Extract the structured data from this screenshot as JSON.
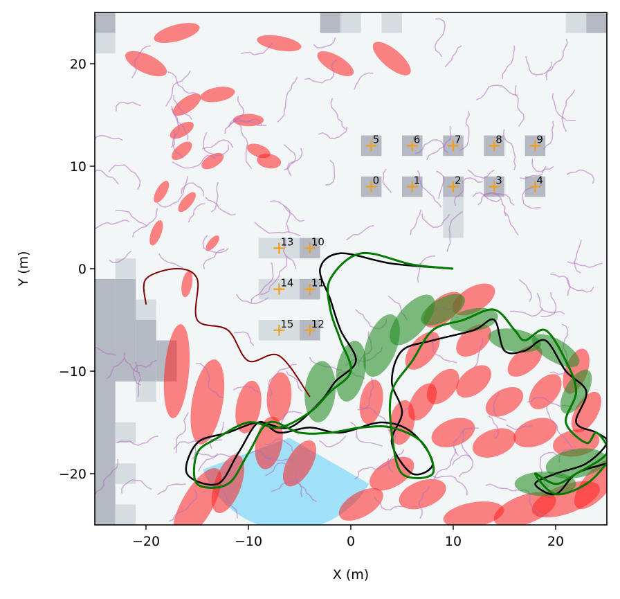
{
  "chart_data": {
    "type": "scatter",
    "title": "",
    "xlabel": "X (m)",
    "ylabel": "Y (m)",
    "xlim": [
      -25,
      25
    ],
    "ylim": [
      -25,
      25
    ],
    "xticks": [
      -20,
      -10,
      0,
      10,
      20
    ],
    "yticks": [
      -20,
      -10,
      0,
      10,
      20
    ],
    "xtick_labels": [
      "−20",
      "−10",
      "0",
      "10",
      "20"
    ],
    "ytick_labels": [
      "−20",
      "−10",
      "0",
      "10",
      "20"
    ],
    "grid": false,
    "legend": "none",
    "colors": {
      "ground_truth": "#000000",
      "estimate": "#007a00",
      "estimate_cov": "#2a8f2a",
      "odometry": "#800000",
      "particles": "#b070c0",
      "particle_cov": "#ff2020",
      "landmark": "#f0a020",
      "fov": "#7dd8f8",
      "occupancy_bg": "#f3f6f7",
      "occupancy_occ": "#b4b9c4"
    },
    "landmarks": [
      {
        "id": "0",
        "x": 2,
        "y": 8
      },
      {
        "id": "1",
        "x": 6,
        "y": 8
      },
      {
        "id": "2",
        "x": 10,
        "y": 8
      },
      {
        "id": "3",
        "x": 14,
        "y": 8
      },
      {
        "id": "4",
        "x": 18,
        "y": 8
      },
      {
        "id": "5",
        "x": 2,
        "y": 12
      },
      {
        "id": "6",
        "x": 6,
        "y": 12
      },
      {
        "id": "7",
        "x": 10,
        "y": 12
      },
      {
        "id": "8",
        "x": 14,
        "y": 12
      },
      {
        "id": "9",
        "x": 18,
        "y": 12
      },
      {
        "id": "10",
        "x": -4,
        "y": 2
      },
      {
        "id": "11",
        "x": -4,
        "y": -2
      },
      {
        "id": "12",
        "x": -4,
        "y": -6
      },
      {
        "id": "13",
        "x": -7,
        "y": 2
      },
      {
        "id": "14",
        "x": -7,
        "y": -2
      },
      {
        "id": "15",
        "x": -7,
        "y": -6
      }
    ],
    "ground_truth_path": [
      [
        10,
        0
      ],
      [
        4,
        0.5
      ],
      [
        -1,
        1.5
      ],
      [
        -3,
        0
      ],
      [
        -2,
        -3
      ],
      [
        -1,
        -6
      ],
      [
        0.5,
        -9
      ],
      [
        -1.5,
        -11
      ],
      [
        -3,
        -13
      ],
      [
        -6,
        -15.5
      ],
      [
        -9,
        -15
      ],
      [
        -12,
        -16
      ],
      [
        -15,
        -17
      ],
      [
        -16,
        -20
      ],
      [
        -13,
        -21
      ],
      [
        -11,
        -18
      ],
      [
        -9,
        -15
      ],
      [
        -7,
        -16
      ],
      [
        -4,
        -15.5
      ],
      [
        -1,
        -16
      ],
      [
        3,
        -15
      ],
      [
        6,
        -16
      ],
      [
        8,
        -19
      ],
      [
        6,
        -20
      ],
      [
        4,
        -17
      ],
      [
        5,
        -14
      ],
      [
        4,
        -11
      ],
      [
        5,
        -8
      ],
      [
        8,
        -7
      ],
      [
        12,
        -6
      ],
      [
        14,
        -5
      ],
      [
        15,
        -8
      ],
      [
        17,
        -8
      ],
      [
        19,
        -7
      ],
      [
        21,
        -10
      ],
      [
        23,
        -12
      ],
      [
        22,
        -15
      ],
      [
        24,
        -16
      ],
      [
        25,
        -17
      ],
      [
        23,
        -19
      ],
      [
        20,
        -20
      ],
      [
        18,
        -21
      ],
      [
        20,
        -22
      ],
      [
        22,
        -20
      ],
      [
        25,
        -19
      ]
    ],
    "estimate_path": [
      [
        10,
        0
      ],
      [
        6,
        0.4
      ],
      [
        1,
        1.5
      ],
      [
        -2,
        -1
      ],
      [
        -2,
        -4
      ],
      [
        -1,
        -7
      ],
      [
        0,
        -10
      ],
      [
        -2,
        -12
      ],
      [
        -4,
        -14
      ],
      [
        -7,
        -15.5
      ],
      [
        -10,
        -15
      ],
      [
        -13,
        -16.5
      ],
      [
        -15,
        -18
      ],
      [
        -15,
        -21
      ],
      [
        -12,
        -21
      ],
      [
        -10,
        -18
      ],
      [
        -8,
        -15
      ],
      [
        -5,
        -16
      ],
      [
        -2,
        -16
      ],
      [
        1,
        -15.5
      ],
      [
        4,
        -15.5
      ],
      [
        7,
        -17
      ],
      [
        8,
        -20
      ],
      [
        5,
        -20
      ],
      [
        4,
        -16
      ],
      [
        4,
        -12
      ],
      [
        6,
        -9
      ],
      [
        8,
        -6
      ],
      [
        11,
        -5
      ],
      [
        14,
        -4
      ],
      [
        16,
        -6
      ],
      [
        17,
        -7
      ],
      [
        19,
        -6
      ],
      [
        21,
        -9
      ],
      [
        22,
        -12
      ],
      [
        21,
        -15
      ],
      [
        23,
        -17
      ],
      [
        24,
        -16
      ],
      [
        25,
        -18
      ],
      [
        22,
        -20
      ],
      [
        20,
        -21
      ],
      [
        18,
        -20
      ],
      [
        20,
        -22
      ],
      [
        23,
        -21
      ],
      [
        25,
        -19
      ]
    ],
    "odometry_path": [
      [
        -20,
        -3.5
      ],
      [
        -20,
        -1
      ],
      [
        -17,
        0
      ],
      [
        -15,
        -1
      ],
      [
        -15,
        -5
      ],
      [
        -12,
        -6
      ],
      [
        -10,
        -9
      ],
      [
        -7,
        -8.5
      ],
      [
        -4,
        -12.5
      ]
    ],
    "cov_red": [
      {
        "x": -20,
        "y": 20,
        "rx": 2.2,
        "ry": 0.9,
        "rot": -25
      },
      {
        "x": -17,
        "y": 23,
        "rx": 2.3,
        "ry": 0.8,
        "rot": 15
      },
      {
        "x": -7,
        "y": 22,
        "rx": 2.2,
        "ry": 0.7,
        "rot": -10
      },
      {
        "x": 4,
        "y": 20.5,
        "rx": 2.3,
        "ry": 0.9,
        "rot": -40
      },
      {
        "x": -1.5,
        "y": 20,
        "rx": 2,
        "ry": 0.8,
        "rot": -30
      },
      {
        "x": -16,
        "y": 16,
        "rx": 1.6,
        "ry": 0.7,
        "rot": 35
      },
      {
        "x": -13,
        "y": 17,
        "rx": 1.7,
        "ry": 0.7,
        "rot": 10
      },
      {
        "x": -10,
        "y": 14.5,
        "rx": 1.5,
        "ry": 0.6,
        "rot": 0
      },
      {
        "x": -16.5,
        "y": 13.5,
        "rx": 1.3,
        "ry": 0.6,
        "rot": 30
      },
      {
        "x": -16.5,
        "y": 11.5,
        "rx": 1.2,
        "ry": 0.6,
        "rot": 40
      },
      {
        "x": -9,
        "y": 11.5,
        "rx": 1.2,
        "ry": 0.6,
        "rot": -20
      },
      {
        "x": -13.5,
        "y": 10.5,
        "rx": 1.2,
        "ry": 0.6,
        "rot": 30
      },
      {
        "x": -8,
        "y": 10.5,
        "rx": 1.2,
        "ry": 0.7,
        "rot": -10
      },
      {
        "x": -18.5,
        "y": 7.5,
        "rx": 1.2,
        "ry": 0.5,
        "rot": 60
      },
      {
        "x": -16,
        "y": 6.5,
        "rx": 1.2,
        "ry": 0.5,
        "rot": 50
      },
      {
        "x": -19,
        "y": 3.5,
        "rx": 1.3,
        "ry": 0.5,
        "rot": 70
      },
      {
        "x": -13.5,
        "y": 2.5,
        "rx": 0.9,
        "ry": 0.4,
        "rot": 50
      },
      {
        "x": -16,
        "y": -1.5,
        "rx": 1.3,
        "ry": 0.5,
        "rot": 80
      },
      {
        "x": -17,
        "y": -10,
        "rx": 4.6,
        "ry": 1.2,
        "rot": 85
      },
      {
        "x": -14,
        "y": -13,
        "rx": 4.2,
        "ry": 1.5,
        "rot": 80
      },
      {
        "x": -10,
        "y": -13.5,
        "rx": 2.6,
        "ry": 1.2,
        "rot": 80
      },
      {
        "x": -7,
        "y": -12.5,
        "rx": 2.4,
        "ry": 1.2,
        "rot": 85
      },
      {
        "x": -8,
        "y": -17,
        "rx": 2.6,
        "ry": 1.3,
        "rot": 80
      },
      {
        "x": -5,
        "y": -19,
        "rx": 2.5,
        "ry": 1.2,
        "rot": 60
      },
      {
        "x": -15,
        "y": -23,
        "rx": 4,
        "ry": 1.5,
        "rot": 60
      },
      {
        "x": -12,
        "y": -21,
        "rx": 3,
        "ry": 1.3,
        "rot": 70
      },
      {
        "x": 2,
        "y": -13,
        "rx": 2.2,
        "ry": 1.1,
        "rot": 80
      },
      {
        "x": 5,
        "y": -15,
        "rx": 2.2,
        "ry": 1.2,
        "rot": 80
      },
      {
        "x": 7,
        "y": -13,
        "rx": 2,
        "ry": 1.1,
        "rot": 60
      },
      {
        "x": 9,
        "y": -11.5,
        "rx": 2,
        "ry": 1.2,
        "rot": 50
      },
      {
        "x": 7,
        "y": -8,
        "rx": 2.2,
        "ry": 1.2,
        "rot": 50
      },
      {
        "x": 9,
        "y": -4,
        "rx": 2.3,
        "ry": 1.2,
        "rot": 40
      },
      {
        "x": 12,
        "y": -3,
        "rx": 2.3,
        "ry": 1.2,
        "rot": 30
      },
      {
        "x": 12,
        "y": -7,
        "rx": 2,
        "ry": 1.2,
        "rot": 40
      },
      {
        "x": 12,
        "y": -11,
        "rx": 2,
        "ry": 1.2,
        "rot": 40
      },
      {
        "x": 15,
        "y": -13,
        "rx": 2,
        "ry": 1.2,
        "rot": 30
      },
      {
        "x": 17,
        "y": -9,
        "rx": 2,
        "ry": 1.1,
        "rot": 40
      },
      {
        "x": 19,
        "y": -12,
        "rx": 2,
        "ry": 1.2,
        "rot": 50
      },
      {
        "x": 22,
        "y": -10,
        "rx": 2.3,
        "ry": 1.1,
        "rot": 70
      },
      {
        "x": 23,
        "y": -14,
        "rx": 2.2,
        "ry": 1.1,
        "rot": 60
      },
      {
        "x": 10,
        "y": -16,
        "rx": 2.2,
        "ry": 1.3,
        "rot": 20
      },
      {
        "x": 14,
        "y": -17,
        "rx": 2.2,
        "ry": 1.3,
        "rot": 20
      },
      {
        "x": 18,
        "y": -16,
        "rx": 2.2,
        "ry": 1.3,
        "rot": 20
      },
      {
        "x": 22,
        "y": -17,
        "rx": 2.3,
        "ry": 1.3,
        "rot": 10
      },
      {
        "x": 4,
        "y": -20,
        "rx": 2.4,
        "ry": 1.3,
        "rot": 30
      },
      {
        "x": 7,
        "y": -22,
        "rx": 2.4,
        "ry": 1.3,
        "rot": 20
      },
      {
        "x": 1,
        "y": -23,
        "rx": 2.4,
        "ry": 1.2,
        "rot": 30
      },
      {
        "x": 12,
        "y": -24,
        "rx": 3,
        "ry": 1.2,
        "rot": 10
      },
      {
        "x": 17,
        "y": -23.5,
        "rx": 3.2,
        "ry": 1.4,
        "rot": 20
      },
      {
        "x": 21,
        "y": -22.5,
        "rx": 3.5,
        "ry": 1.4,
        "rot": 20
      },
      {
        "x": 24,
        "y": -21,
        "rx": 3,
        "ry": 1.3,
        "rot": 50
      }
    ],
    "cov_green": [
      {
        "x": -3,
        "y": -12,
        "rx": 3,
        "ry": 1.5,
        "rot": 85
      },
      {
        "x": 0,
        "y": -10,
        "rx": 3,
        "ry": 1.4,
        "rot": 80
      },
      {
        "x": 3,
        "y": -7.5,
        "rx": 3.2,
        "ry": 1.5,
        "rot": 70
      },
      {
        "x": 6,
        "y": -5,
        "rx": 3,
        "ry": 1.4,
        "rot": 50
      },
      {
        "x": 9,
        "y": -4,
        "rx": 2.4,
        "ry": 1.1,
        "rot": 30
      },
      {
        "x": 12,
        "y": -5,
        "rx": 2.4,
        "ry": 1.1,
        "rot": 10
      },
      {
        "x": 16,
        "y": -7,
        "rx": 2.6,
        "ry": 1.1,
        "rot": -10
      },
      {
        "x": 20,
        "y": -8,
        "rx": 2.6,
        "ry": 1.1,
        "rot": -30
      },
      {
        "x": 22,
        "y": -12,
        "rx": 2.4,
        "ry": 1.1,
        "rot": 60
      },
      {
        "x": 22,
        "y": -19,
        "rx": 3,
        "ry": 1.4,
        "rot": 10
      },
      {
        "x": 19,
        "y": -21,
        "rx": 3,
        "ry": 1.2,
        "rot": 0
      }
    ],
    "occupancy_cells": [
      {
        "x": -25,
        "y": 23,
        "w": 2,
        "h": 2
      },
      {
        "x": -25,
        "y": 21,
        "w": 2,
        "h": 2,
        "light": true
      },
      {
        "x": -3,
        "y": 23,
        "w": 2,
        "h": 2
      },
      {
        "x": -1,
        "y": 23,
        "w": 2,
        "h": 2,
        "light": true
      },
      {
        "x": 3,
        "y": 23,
        "w": 2,
        "h": 2,
        "light": true
      },
      {
        "x": 21,
        "y": 23,
        "w": 2,
        "h": 2,
        "light": true
      },
      {
        "x": 23,
        "y": 23,
        "w": 2,
        "h": 2
      },
      {
        "x": 1,
        "y": 11,
        "w": 2,
        "h": 2
      },
      {
        "x": 5,
        "y": 11,
        "w": 2,
        "h": 2
      },
      {
        "x": 9,
        "y": 11,
        "w": 2,
        "h": 2
      },
      {
        "x": 13,
        "y": 11,
        "w": 2,
        "h": 2
      },
      {
        "x": 17,
        "y": 11,
        "w": 2,
        "h": 2
      },
      {
        "x": 1,
        "y": 7,
        "w": 2,
        "h": 2
      },
      {
        "x": 5,
        "y": 7,
        "w": 2,
        "h": 2
      },
      {
        "x": 9,
        "y": 7,
        "w": 2,
        "h": 2
      },
      {
        "x": 13,
        "y": 7,
        "w": 2,
        "h": 2
      },
      {
        "x": 17,
        "y": 7,
        "w": 2,
        "h": 2
      },
      {
        "x": 9,
        "y": 5,
        "w": 2,
        "h": 2,
        "light": true
      },
      {
        "x": 9,
        "y": 3,
        "w": 2,
        "h": 2,
        "light": true
      },
      {
        "x": -9,
        "y": 1,
        "w": 4,
        "h": 2,
        "light": true
      },
      {
        "x": -5,
        "y": 1,
        "w": 2,
        "h": 2
      },
      {
        "x": -9,
        "y": -3,
        "w": 4,
        "h": 2,
        "light": true
      },
      {
        "x": -5,
        "y": -3,
        "w": 2,
        "h": 2
      },
      {
        "x": -9,
        "y": -7,
        "w": 4,
        "h": 2,
        "light": true
      },
      {
        "x": -5,
        "y": -7,
        "w": 2,
        "h": 2
      },
      {
        "x": -25,
        "y": -25,
        "w": 2,
        "h": 24
      },
      {
        "x": -23,
        "y": -11,
        "w": 2,
        "h": 10
      },
      {
        "x": -21,
        "y": -11,
        "w": 2,
        "h": 6
      },
      {
        "x": -19,
        "y": -11,
        "w": 2,
        "h": 4
      },
      {
        "x": -21,
        "y": -5,
        "w": 2,
        "h": 2,
        "light": true
      },
      {
        "x": -23,
        "y": -1,
        "w": 2,
        "h": 2,
        "light": true
      },
      {
        "x": -23,
        "y": -17,
        "w": 2,
        "h": 2,
        "light": true
      },
      {
        "x": -23,
        "y": -21,
        "w": 2,
        "h": 2,
        "light": true
      },
      {
        "x": -23,
        "y": -25,
        "w": 2,
        "h": 2,
        "light": true
      },
      {
        "x": -21,
        "y": -13,
        "w": 2,
        "h": 2,
        "light": true
      }
    ],
    "fov": {
      "x": -6,
      "y": -16.5,
      "radius": 9,
      "start_deg": 200,
      "end_deg": 330
    }
  }
}
